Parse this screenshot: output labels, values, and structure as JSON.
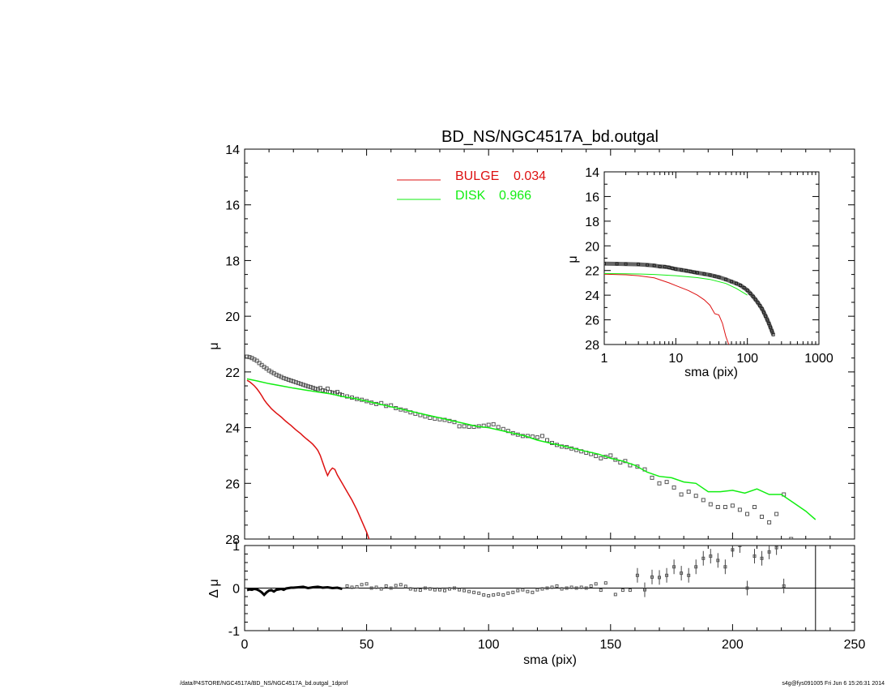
{
  "footer": {
    "path": "/data/P4STORE/NGC4517A/BD_NS/NGC4517A_bd.outgal_1dprof",
    "stamp": "s4g@fys091005  Fri Jun  6 15:26:31 2014"
  },
  "colors": {
    "bulge": "#dd1111",
    "disk": "#11ee11",
    "data": "#555555",
    "axes": "#000000"
  },
  "chart_data": [
    {
      "id": "main",
      "type": "line",
      "title": "BD_NS/NGC4517A_bd.outgal",
      "xlabel": "",
      "ylabel": "μ",
      "xlim": [
        0,
        250
      ],
      "ylim": [
        28,
        14
      ],
      "y_inverted": true,
      "xticks": [
        0,
        50,
        100,
        150,
        200,
        250
      ],
      "yticks": [
        14,
        16,
        18,
        20,
        22,
        24,
        26,
        28
      ],
      "legend": {
        "placement": "top-center",
        "entries": [
          {
            "label": "BULGE",
            "value": "0.034",
            "color": "#dd1111"
          },
          {
            "label": "DISK",
            "value": "0.966",
            "color": "#11ee11"
          }
        ]
      },
      "series": [
        {
          "type": "scatter",
          "marker": "square",
          "x": [
            1,
            2,
            3,
            4,
            5,
            6,
            7,
            8,
            9,
            10,
            11,
            12,
            13,
            14,
            15,
            16,
            17,
            18,
            19,
            20,
            21,
            22,
            23,
            24,
            25,
            26,
            27,
            28,
            29,
            30,
            31,
            32,
            33,
            34,
            35,
            36,
            37,
            38,
            39,
            40,
            42,
            44,
            46,
            48,
            50,
            52,
            54,
            56,
            58,
            60,
            62,
            64,
            66,
            68,
            70,
            72,
            74,
            76,
            78,
            80,
            82,
            84,
            86,
            88,
            90,
            92,
            94,
            96,
            98,
            100,
            102,
            104,
            106,
            108,
            110,
            112,
            114,
            116,
            118,
            120,
            122,
            124,
            126,
            128,
            130,
            132,
            134,
            136,
            138,
            140,
            142,
            144,
            146,
            148,
            150,
            152,
            154,
            156,
            158,
            161,
            164,
            167,
            170,
            173,
            176,
            179,
            182,
            185,
            188,
            191,
            194,
            197,
            200,
            203,
            206,
            209,
            212,
            215,
            218,
            221,
            224
          ],
          "y": [
            21.45,
            21.47,
            21.5,
            21.55,
            21.6,
            21.68,
            21.75,
            21.82,
            21.88,
            21.95,
            22.0,
            22.05,
            22.1,
            22.14,
            22.18,
            22.22,
            22.25,
            22.28,
            22.31,
            22.34,
            22.37,
            22.4,
            22.43,
            22.46,
            22.49,
            22.52,
            22.54,
            22.57,
            22.6,
            22.62,
            22.58,
            22.66,
            22.68,
            22.6,
            22.72,
            22.74,
            22.76,
            22.72,
            22.8,
            22.83,
            22.88,
            22.92,
            22.97,
            23.0,
            23.05,
            23.1,
            23.15,
            23.12,
            23.22,
            23.2,
            23.3,
            23.35,
            23.38,
            23.45,
            23.5,
            23.55,
            23.6,
            23.65,
            23.68,
            23.7,
            23.72,
            23.76,
            23.8,
            23.95,
            23.95,
            23.97,
            23.97,
            23.95,
            23.93,
            23.9,
            23.88,
            23.98,
            24.05,
            24.12,
            24.2,
            24.25,
            24.3,
            24.3,
            24.32,
            24.35,
            24.3,
            24.45,
            24.55,
            24.62,
            24.68,
            24.7,
            24.75,
            24.8,
            24.85,
            24.9,
            24.95,
            25.02,
            25.1,
            25.05,
            25.0,
            25.15,
            25.25,
            25.2,
            25.35,
            25.4,
            25.5,
            25.8,
            26.0,
            25.95,
            26.15,
            26.4,
            26.3,
            26.45,
            26.6,
            26.75,
            26.85,
            26.85,
            26.8,
            26.95,
            27.1,
            26.85,
            27.2,
            27.4,
            27.1,
            26.4,
            28.0
          ]
        },
        {
          "name": "BULGE",
          "type": "line",
          "x": [
            1,
            2,
            3,
            4,
            5,
            6,
            7,
            8,
            9,
            10,
            11,
            12,
            13,
            14,
            15,
            16,
            17,
            18,
            19,
            20,
            21,
            22,
            23,
            24,
            25,
            26,
            27,
            28,
            29,
            30,
            31,
            32,
            33,
            34,
            35,
            36,
            37,
            38,
            40,
            42,
            44,
            46,
            48,
            50,
            51
          ],
          "y": [
            22.3,
            22.35,
            22.42,
            22.5,
            22.6,
            22.72,
            22.85,
            23.0,
            23.12,
            23.22,
            23.32,
            23.4,
            23.48,
            23.55,
            23.62,
            23.7,
            23.78,
            23.85,
            23.92,
            24.0,
            24.08,
            24.15,
            24.22,
            24.3,
            24.38,
            24.45,
            24.52,
            24.6,
            24.7,
            24.82,
            25.0,
            25.25,
            25.5,
            25.72,
            25.55,
            25.45,
            25.5,
            25.7,
            26.0,
            26.3,
            26.6,
            26.95,
            27.35,
            27.75,
            28.0
          ]
        },
        {
          "name": "DISK",
          "type": "line",
          "x": [
            1,
            5,
            10,
            15,
            20,
            25,
            30,
            35,
            40,
            45,
            50,
            55,
            60,
            65,
            70,
            75,
            80,
            85,
            90,
            95,
            100,
            105,
            110,
            115,
            120,
            125,
            130,
            135,
            140,
            145,
            150,
            155,
            160,
            165,
            170,
            175,
            180,
            185,
            190,
            195,
            200,
            205,
            210,
            215,
            220,
            225,
            230,
            234
          ],
          "y": [
            22.25,
            22.32,
            22.42,
            22.5,
            22.58,
            22.65,
            22.72,
            22.78,
            22.88,
            22.95,
            23.05,
            23.15,
            23.25,
            23.35,
            23.45,
            23.55,
            23.65,
            23.75,
            23.85,
            23.95,
            24.0,
            24.1,
            24.2,
            24.3,
            24.45,
            24.55,
            24.65,
            24.75,
            24.85,
            24.95,
            25.1,
            25.2,
            25.35,
            25.6,
            25.75,
            25.8,
            25.95,
            26.0,
            26.3,
            26.3,
            26.25,
            26.35,
            26.2,
            26.4,
            26.4,
            26.7,
            27.0,
            27.3
          ]
        }
      ]
    },
    {
      "id": "residual",
      "type": "scatter",
      "xlabel": "sma (pix)",
      "ylabel": "Δ μ",
      "xlim": [
        0,
        250
      ],
      "ylim": [
        -1,
        1
      ],
      "xticks": [
        0,
        50,
        100,
        150,
        200,
        250
      ],
      "yticks": [
        -1,
        0,
        1
      ],
      "zero_line": 0,
      "vline_x": 234,
      "series": [
        {
          "type": "line",
          "color": "#000000",
          "x": [
            1,
            2,
            3,
            4,
            5,
            6,
            7,
            8,
            9,
            10,
            11,
            12,
            13,
            14,
            15,
            16,
            17,
            18,
            19,
            20,
            22,
            24,
            26,
            28,
            30,
            32,
            34,
            36,
            38,
            40
          ],
          "y": [
            -0.05,
            -0.03,
            -0.04,
            -0.02,
            -0.03,
            -0.06,
            -0.1,
            -0.16,
            -0.1,
            -0.06,
            -0.05,
            -0.08,
            -0.04,
            -0.03,
            -0.02,
            -0.04,
            -0.01,
            0.0,
            0.01,
            0.01,
            0.02,
            0.03,
            0.0,
            0.02,
            0.03,
            0.01,
            0.02,
            0.0,
            0.01,
            -0.02
          ]
        },
        {
          "type": "scatter",
          "marker": "square",
          "x": [
            42,
            44,
            46,
            48,
            50,
            52,
            54,
            56,
            58,
            60,
            62,
            64,
            66,
            68,
            70,
            72,
            74,
            76,
            78,
            80,
            82,
            84,
            86,
            88,
            90,
            92,
            94,
            96,
            98,
            100,
            102,
            104,
            106,
            108,
            110,
            112,
            114,
            116,
            118,
            120,
            122,
            124,
            126,
            128,
            130,
            132,
            134,
            136,
            138,
            140,
            142,
            144,
            146,
            148,
            152,
            155,
            158,
            161,
            164,
            167,
            170,
            173,
            176,
            179,
            182,
            185,
            188,
            191,
            194,
            197,
            200,
            203,
            206,
            209,
            212,
            215,
            218,
            221
          ],
          "y": [
            0.05,
            0.02,
            0.03,
            0.08,
            0.1,
            0.0,
            0.02,
            -0.02,
            0.05,
            0.0,
            0.06,
            0.08,
            0.04,
            -0.02,
            -0.04,
            -0.05,
            0.0,
            -0.02,
            -0.04,
            -0.04,
            -0.06,
            -0.02,
            0.0,
            -0.04,
            -0.06,
            -0.08,
            -0.1,
            -0.12,
            -0.16,
            -0.18,
            -0.16,
            -0.14,
            -0.16,
            -0.12,
            -0.1,
            -0.06,
            -0.04,
            -0.08,
            -0.1,
            -0.04,
            -0.02,
            0.0,
            0.02,
            0.05,
            -0.02,
            0.0,
            0.02,
            0.0,
            0.02,
            0.0,
            0.05,
            0.1,
            -0.05,
            0.12,
            -0.15,
            -0.05,
            -0.05,
            0.3,
            -0.04,
            0.26,
            0.25,
            0.3,
            0.5,
            0.35,
            0.3,
            0.5,
            0.7,
            0.75,
            0.65,
            0.5,
            0.9,
            1.0,
            0.0,
            0.75,
            0.7,
            0.85,
            0.95,
            0.05
          ]
        }
      ]
    },
    {
      "id": "inset",
      "type": "line",
      "xlabel": "sma (pix)",
      "ylabel": "μ",
      "xscale": "log",
      "xlim": [
        1,
        1000
      ],
      "ylim": [
        28,
        14
      ],
      "y_inverted": true,
      "xticks": [
        1,
        10,
        100,
        1000
      ],
      "yticks": [
        14,
        16,
        18,
        20,
        22,
        24,
        26,
        28
      ],
      "series": [
        {
          "type": "scatter",
          "marker": "square",
          "x": [
            1,
            1.5,
            2,
            3,
            4,
            5,
            6,
            7,
            8,
            9,
            10,
            12,
            14,
            16,
            18,
            20,
            25,
            30,
            35,
            40,
            50,
            60,
            70,
            80,
            90,
            100,
            110,
            120,
            130,
            140,
            150,
            160,
            170,
            180,
            190,
            200,
            210,
            220,
            230
          ],
          "y": [
            21.45,
            21.46,
            21.47,
            21.5,
            21.55,
            21.6,
            21.68,
            21.7,
            21.75,
            21.82,
            21.88,
            21.95,
            22.02,
            22.08,
            22.14,
            22.18,
            22.28,
            22.37,
            22.46,
            22.54,
            22.72,
            22.9,
            23.05,
            23.2,
            23.4,
            23.6,
            23.85,
            24.1,
            24.35,
            24.6,
            24.85,
            25.1,
            25.4,
            25.7,
            26.0,
            26.3,
            26.6,
            26.9,
            27.2
          ]
        },
        {
          "name": "BULGE",
          "type": "line",
          "x": [
            1,
            2,
            3,
            5,
            8,
            10,
            15,
            20,
            25,
            30,
            35,
            40,
            45,
            50,
            55
          ],
          "y": [
            22.3,
            22.35,
            22.42,
            22.6,
            23.0,
            23.22,
            23.62,
            24.0,
            24.38,
            24.82,
            25.5,
            25.6,
            26.3,
            27.35,
            28.0
          ]
        },
        {
          "name": "DISK",
          "type": "line",
          "x": [
            1,
            2,
            3,
            5,
            10,
            20,
            30,
            50,
            70,
            100
          ],
          "y": [
            22.25,
            22.26,
            22.28,
            22.32,
            22.42,
            22.58,
            22.72,
            23.05,
            23.45,
            24.0
          ]
        }
      ]
    }
  ]
}
